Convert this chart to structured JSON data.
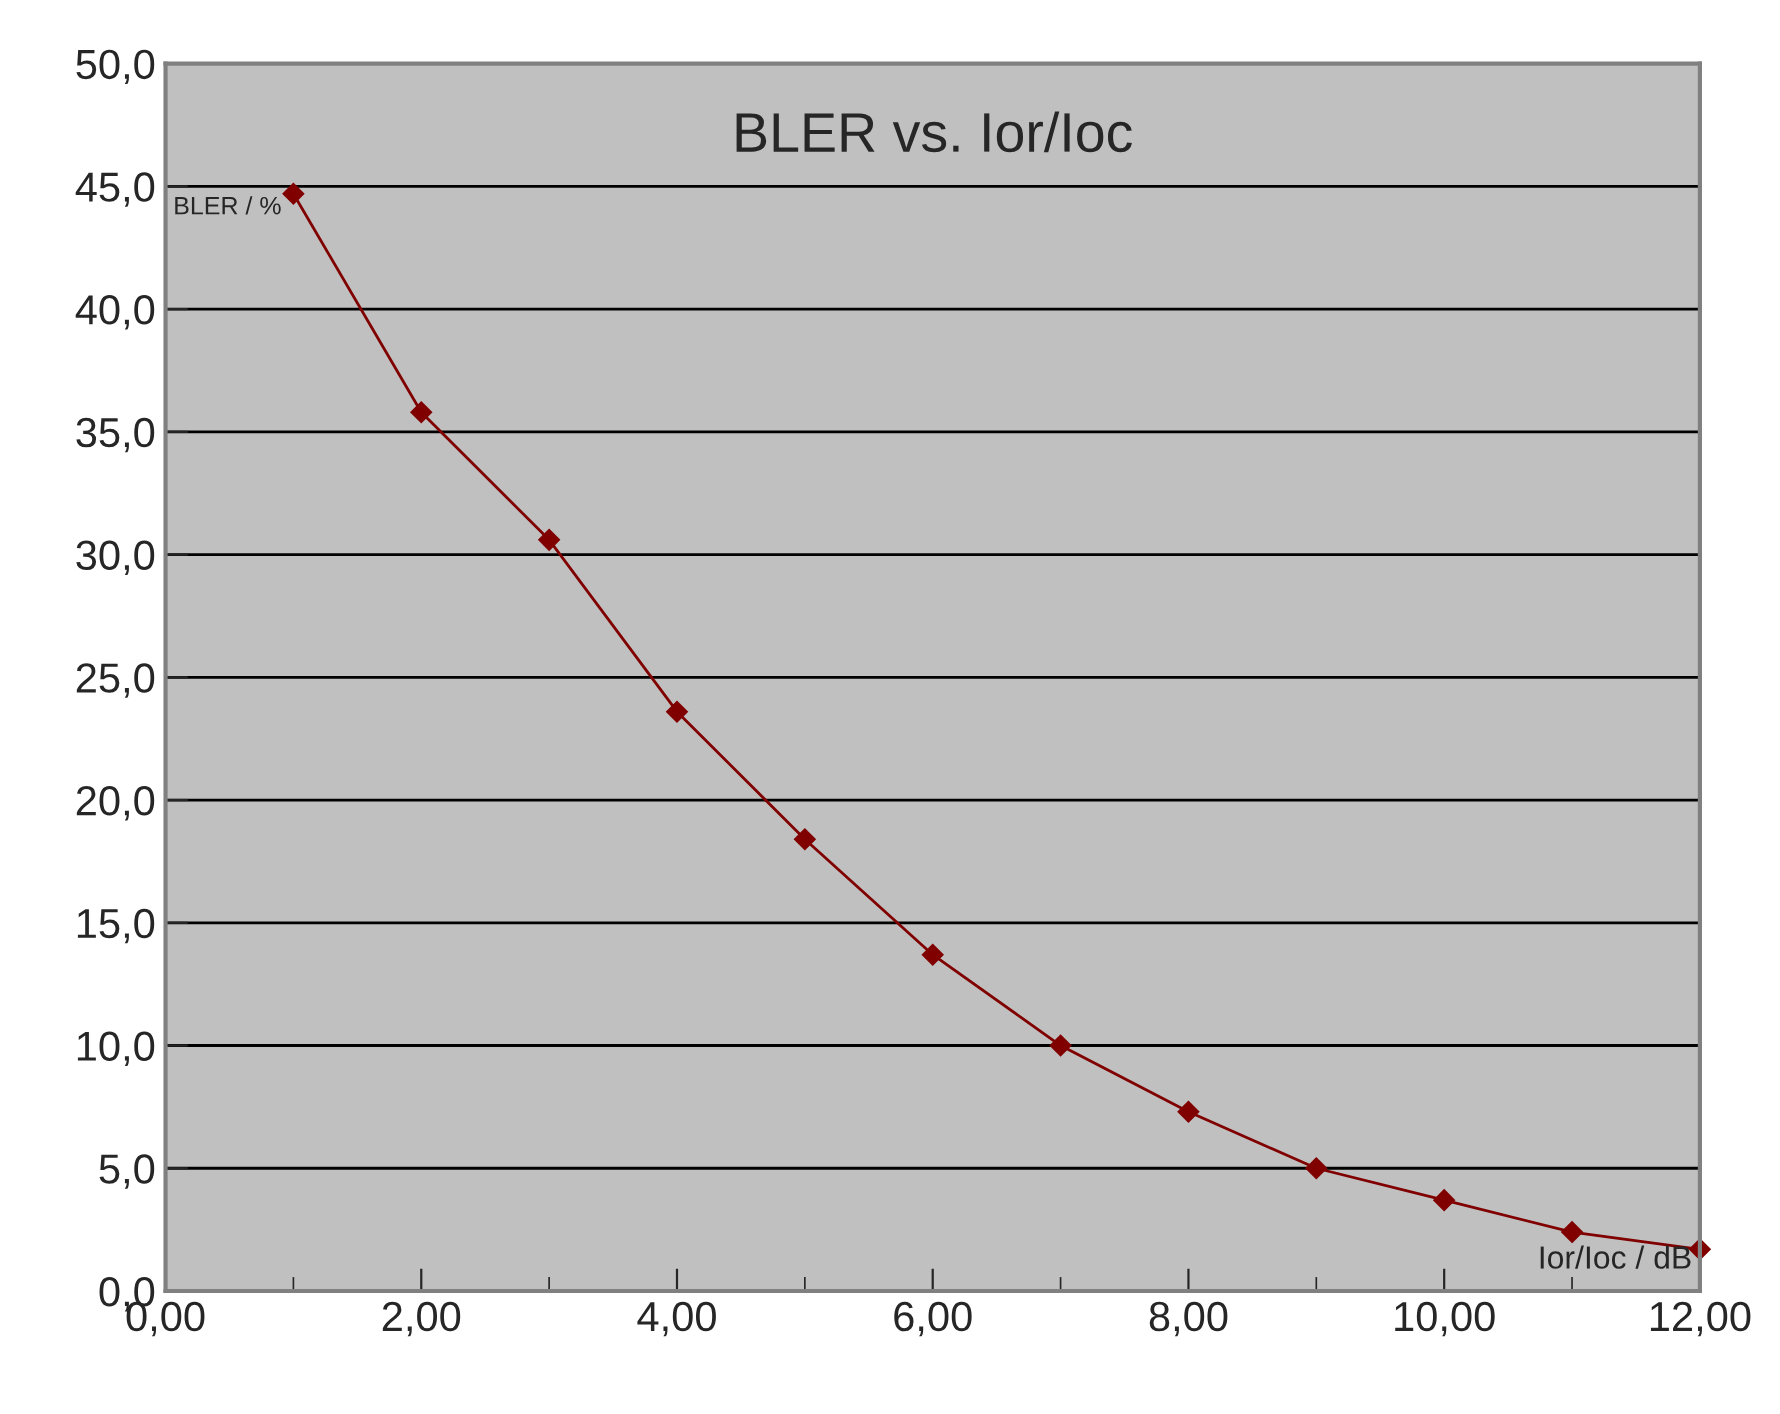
{
  "chart_data": {
    "type": "line",
    "title": "BLER vs. Ior/Ioc",
    "xlabel": "Ior/Ioc / dB",
    "ylabel": "BLER / %",
    "x": [
      1,
      2,
      3,
      4,
      5,
      6,
      7,
      8,
      9,
      10,
      11,
      12
    ],
    "series": [
      {
        "color": "#800000",
        "values": [
          44.7,
          35.8,
          30.6,
          23.6,
          18.4,
          13.7,
          10.0,
          7.3,
          5.0,
          3.7,
          2.4,
          1.7
        ]
      }
    ],
    "xlim": [
      0,
      12
    ],
    "ylim": [
      0,
      50
    ],
    "xticks": [
      {
        "value": 0,
        "label": "0,00"
      },
      {
        "value": 2,
        "label": "2,00"
      },
      {
        "value": 4,
        "label": "4,00"
      },
      {
        "value": 6,
        "label": "6,00"
      },
      {
        "value": 8,
        "label": "8,00"
      },
      {
        "value": 10,
        "label": "10,00"
      },
      {
        "value": 12,
        "label": "12,00"
      }
    ],
    "yticks": [
      {
        "value": 0,
        "label": "0,0"
      },
      {
        "value": 5,
        "label": "5,0"
      },
      {
        "value": 10,
        "label": "10,0"
      },
      {
        "value": 15,
        "label": "15,0"
      },
      {
        "value": 20,
        "label": "20,0"
      },
      {
        "value": 25,
        "label": "25,0"
      },
      {
        "value": 30,
        "label": "30,0"
      },
      {
        "value": 35,
        "label": "35,0"
      },
      {
        "value": 40,
        "label": "40,0"
      },
      {
        "value": 45,
        "label": "45,0"
      },
      {
        "value": 50,
        "label": "50,0"
      }
    ],
    "grid": "y",
    "marker": "diamond",
    "line_style": "solid"
  }
}
